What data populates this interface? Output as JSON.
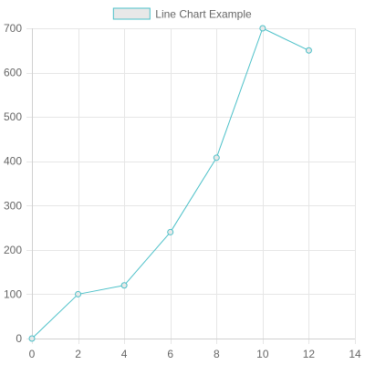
{
  "chart_data": {
    "type": "line",
    "title": "",
    "xlabel": "",
    "ylabel": "",
    "xlim": [
      0,
      14
    ],
    "ylim": [
      0,
      700
    ],
    "x_ticks": [
      0,
      2,
      4,
      6,
      8,
      10,
      12,
      14
    ],
    "y_ticks": [
      0,
      100,
      200,
      300,
      400,
      500,
      600,
      700
    ],
    "grid": true,
    "legend_position": "top-center",
    "series": [
      {
        "name": "Line Chart Example",
        "color": "#4bc0c8",
        "fill_color": "#e8e8e8",
        "point_style": "circle",
        "x": [
          0,
          2,
          4,
          6,
          8,
          10,
          12
        ],
        "y": [
          0,
          100,
          120,
          240,
          408,
          700,
          650
        ]
      }
    ]
  }
}
